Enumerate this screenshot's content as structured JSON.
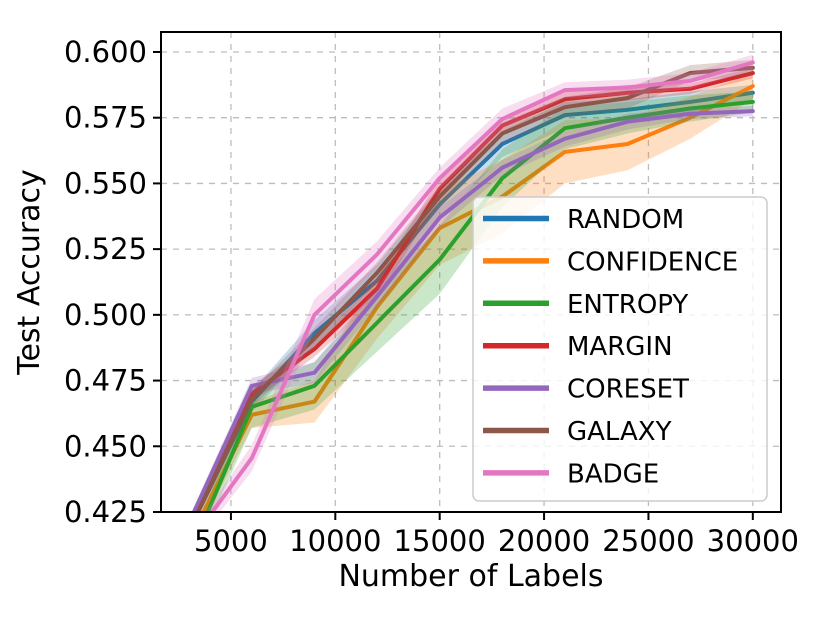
{
  "chart_data": {
    "type": "line",
    "title": "",
    "xlabel": "Number of Labels",
    "ylabel": "Test Accuracy",
    "x": [
      3000,
      6000,
      9000,
      12000,
      15000,
      18000,
      21000,
      24000,
      27000,
      30000
    ],
    "xlim": [
      1650,
      31350
    ],
    "ylim": [
      0.425,
      0.6076
    ],
    "xticks": [
      5000,
      10000,
      15000,
      20000,
      25000,
      30000
    ],
    "xtick_labels": [
      "5000",
      "10000",
      "15000",
      "20000",
      "25000",
      "30000"
    ],
    "yticks": [
      0.425,
      0.45,
      0.475,
      0.5,
      0.525,
      0.55,
      0.575,
      0.6
    ],
    "ytick_labels": [
      "0.425",
      "0.450",
      "0.475",
      "0.500",
      "0.525",
      "0.550",
      "0.575",
      "0.600"
    ],
    "grid": true,
    "grid_style": "dashed",
    "legend_position": "inside lower-right area",
    "band_alpha": 0.25,
    "series": [
      {
        "name": "RANDOM",
        "color": "#1f77b4",
        "values": [
          0.418,
          0.467,
          0.493,
          0.513,
          0.542,
          0.565,
          0.576,
          0.578,
          0.581,
          0.5845
        ],
        "band": [
          0.003,
          0.004,
          0.005,
          0.006,
          0.006,
          0.005,
          0.005,
          0.004,
          0.004,
          0.003
        ]
      },
      {
        "name": "CONFIDENCE",
        "color": "#ff7f0e",
        "values": [
          0.414,
          0.462,
          0.467,
          0.503,
          0.533,
          0.545,
          0.562,
          0.565,
          0.575,
          0.587
        ],
        "band": [
          0.003,
          0.005,
          0.008,
          0.012,
          0.014,
          0.014,
          0.012,
          0.01,
          0.008,
          0.005
        ]
      },
      {
        "name": "ENTROPY",
        "color": "#2ca02c",
        "values": [
          0.408,
          0.465,
          0.473,
          0.497,
          0.521,
          0.552,
          0.571,
          0.575,
          0.5785,
          0.581
        ],
        "band": [
          0.004,
          0.008,
          0.009,
          0.011,
          0.013,
          0.011,
          0.008,
          0.006,
          0.005,
          0.004
        ]
      },
      {
        "name": "MARGIN",
        "color": "#d62728",
        "values": [
          0.42,
          0.47,
          0.487,
          0.51,
          0.548,
          0.572,
          0.582,
          0.5845,
          0.586,
          0.592
        ],
        "band": [
          0.002,
          0.003,
          0.003,
          0.004,
          0.004,
          0.003,
          0.003,
          0.003,
          0.002,
          0.002
        ]
      },
      {
        "name": "CORESET",
        "color": "#9467bd",
        "values": [
          0.421,
          0.473,
          0.478,
          0.507,
          0.537,
          0.556,
          0.567,
          0.5735,
          0.5765,
          0.5775
        ],
        "band": [
          0.002,
          0.003,
          0.004,
          0.004,
          0.004,
          0.003,
          0.003,
          0.003,
          0.002,
          0.002
        ]
      },
      {
        "name": "GALAXY",
        "color": "#8c564b",
        "values": [
          0.418,
          0.468,
          0.491,
          0.516,
          0.545,
          0.569,
          0.579,
          0.5825,
          0.592,
          0.594
        ],
        "band": [
          0.002,
          0.003,
          0.004,
          0.004,
          0.004,
          0.004,
          0.004,
          0.004,
          0.003,
          0.003
        ]
      },
      {
        "name": "BADGE",
        "color": "#e377c2",
        "values": [
          0.413,
          0.4455,
          0.5,
          0.523,
          0.552,
          0.5745,
          0.5855,
          0.5865,
          0.589,
          0.596
        ],
        "band": [
          0.003,
          0.005,
          0.006,
          0.005,
          0.004,
          0.004,
          0.003,
          0.003,
          0.003,
          0.003
        ]
      }
    ],
    "colors": {
      "background": "#ffffff",
      "spine": "#000000",
      "grid": "#bdbdbd",
      "legend_border": "#cccccc",
      "legend_fill": "#ffffff",
      "text": "#000000"
    }
  }
}
